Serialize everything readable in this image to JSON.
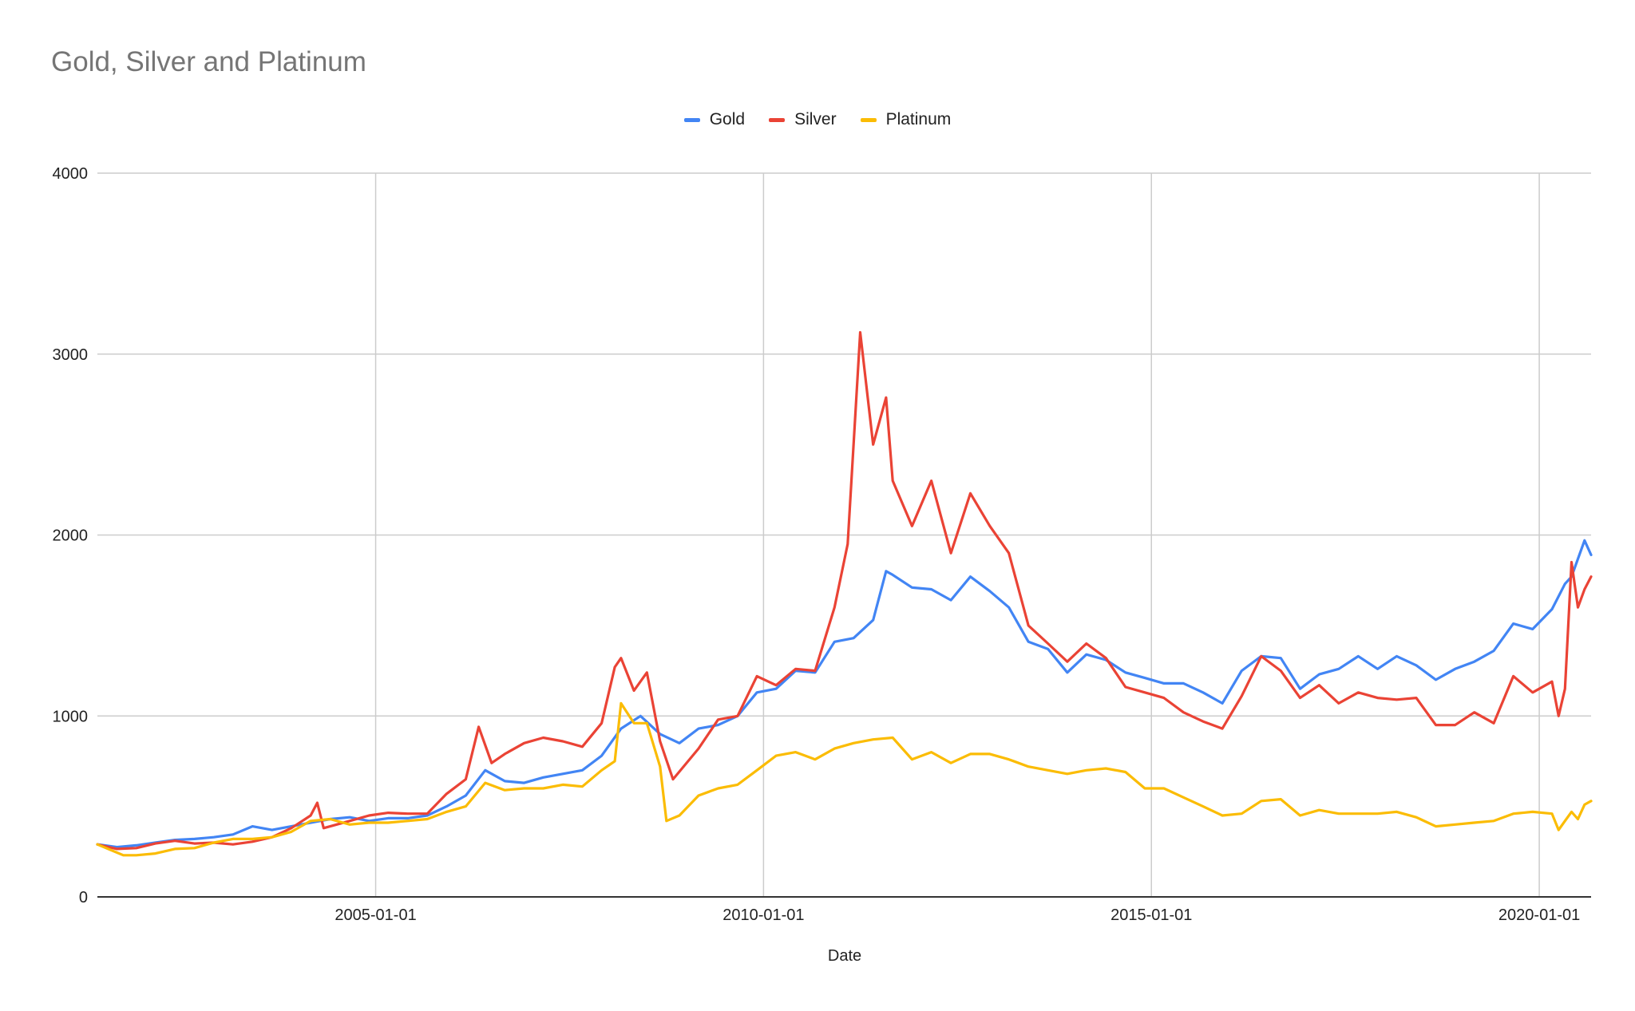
{
  "chart_data": {
    "type": "line",
    "title": "Gold, Silver and Platinum",
    "xlabel": "Date",
    "ylabel": "",
    "ylim": [
      0,
      4000
    ],
    "xlim": [
      "2001-06-01",
      "2020-09-01"
    ],
    "grid": true,
    "legend_position": "top-center",
    "y_ticks": [
      "0",
      "1000",
      "2000",
      "3000",
      "4000"
    ],
    "x_ticks": [
      "2005-01-01",
      "2010-01-01",
      "2015-01-01",
      "2020-01-01"
    ],
    "series": [
      {
        "name": "Gold",
        "color": "#4285F4",
        "points": [
          [
            "2001-06-01",
            290
          ],
          [
            "2001-09-01",
            275
          ],
          [
            "2001-12-01",
            285
          ],
          [
            "2002-03-01",
            300
          ],
          [
            "2002-06-01",
            315
          ],
          [
            "2002-09-01",
            320
          ],
          [
            "2002-12-01",
            330
          ],
          [
            "2003-03-01",
            345
          ],
          [
            "2003-06-01",
            390
          ],
          [
            "2003-09-01",
            370
          ],
          [
            "2003-12-01",
            390
          ],
          [
            "2004-03-01",
            410
          ],
          [
            "2004-06-01",
            430
          ],
          [
            "2004-09-01",
            440
          ],
          [
            "2004-12-01",
            420
          ],
          [
            "2005-03-01",
            435
          ],
          [
            "2005-06-01",
            435
          ],
          [
            "2005-09-01",
            450
          ],
          [
            "2005-12-01",
            500
          ],
          [
            "2006-03-01",
            560
          ],
          [
            "2006-06-01",
            700
          ],
          [
            "2006-09-01",
            640
          ],
          [
            "2006-12-01",
            630
          ],
          [
            "2007-03-01",
            660
          ],
          [
            "2007-06-01",
            680
          ],
          [
            "2007-09-01",
            700
          ],
          [
            "2007-12-01",
            780
          ],
          [
            "2008-03-01",
            930
          ],
          [
            "2008-06-01",
            1000
          ],
          [
            "2008-09-01",
            900
          ],
          [
            "2008-12-01",
            850
          ],
          [
            "2009-03-01",
            930
          ],
          [
            "2009-06-01",
            950
          ],
          [
            "2009-09-01",
            1000
          ],
          [
            "2009-12-01",
            1130
          ],
          [
            "2010-03-01",
            1150
          ],
          [
            "2010-06-01",
            1250
          ],
          [
            "2010-09-01",
            1240
          ],
          [
            "2010-12-01",
            1410
          ],
          [
            "2011-03-01",
            1430
          ],
          [
            "2011-06-01",
            1530
          ],
          [
            "2011-08-01",
            1800
          ],
          [
            "2011-09-01",
            1780
          ],
          [
            "2011-12-01",
            1710
          ],
          [
            "2012-03-01",
            1700
          ],
          [
            "2012-06-01",
            1640
          ],
          [
            "2012-09-01",
            1770
          ],
          [
            "2012-12-01",
            1690
          ],
          [
            "2013-03-01",
            1600
          ],
          [
            "2013-06-01",
            1410
          ],
          [
            "2013-09-01",
            1370
          ],
          [
            "2013-12-01",
            1240
          ],
          [
            "2014-03-01",
            1340
          ],
          [
            "2014-06-01",
            1310
          ],
          [
            "2014-09-01",
            1240
          ],
          [
            "2014-12-01",
            1210
          ],
          [
            "2015-03-01",
            1180
          ],
          [
            "2015-06-01",
            1180
          ],
          [
            "2015-09-01",
            1130
          ],
          [
            "2015-12-01",
            1070
          ],
          [
            "2016-03-01",
            1250
          ],
          [
            "2016-06-01",
            1330
          ],
          [
            "2016-09-01",
            1320
          ],
          [
            "2016-12-01",
            1150
          ],
          [
            "2017-03-01",
            1230
          ],
          [
            "2017-06-01",
            1260
          ],
          [
            "2017-09-01",
            1330
          ],
          [
            "2017-12-01",
            1260
          ],
          [
            "2018-03-01",
            1330
          ],
          [
            "2018-06-01",
            1280
          ],
          [
            "2018-09-01",
            1200
          ],
          [
            "2018-12-01",
            1260
          ],
          [
            "2019-03-01",
            1300
          ],
          [
            "2019-06-01",
            1360
          ],
          [
            "2019-09-01",
            1510
          ],
          [
            "2019-12-01",
            1480
          ],
          [
            "2020-03-01",
            1590
          ],
          [
            "2020-05-01",
            1730
          ],
          [
            "2020-06-01",
            1770
          ],
          [
            "2020-08-01",
            1970
          ],
          [
            "2020-09-01",
            1890
          ]
        ]
      },
      {
        "name": "Silver",
        "color": "#EA4335",
        "points": [
          [
            "2001-06-01",
            290
          ],
          [
            "2001-09-01",
            265
          ],
          [
            "2001-12-01",
            270
          ],
          [
            "2002-03-01",
            295
          ],
          [
            "2002-06-01",
            310
          ],
          [
            "2002-09-01",
            295
          ],
          [
            "2002-12-01",
            300
          ],
          [
            "2003-03-01",
            290
          ],
          [
            "2003-06-01",
            305
          ],
          [
            "2003-09-01",
            330
          ],
          [
            "2003-12-01",
            380
          ],
          [
            "2004-03-01",
            450
          ],
          [
            "2004-04-01",
            520
          ],
          [
            "2004-05-01",
            380
          ],
          [
            "2004-09-01",
            420
          ],
          [
            "2004-12-01",
            450
          ],
          [
            "2005-03-01",
            465
          ],
          [
            "2005-06-01",
            460
          ],
          [
            "2005-09-01",
            460
          ],
          [
            "2005-12-01",
            570
          ],
          [
            "2006-03-01",
            650
          ],
          [
            "2006-05-01",
            940
          ],
          [
            "2006-07-01",
            740
          ],
          [
            "2006-09-01",
            790
          ],
          [
            "2006-12-01",
            850
          ],
          [
            "2007-03-01",
            880
          ],
          [
            "2007-06-01",
            860
          ],
          [
            "2007-09-01",
            830
          ],
          [
            "2007-12-01",
            960
          ],
          [
            "2008-02-01",
            1270
          ],
          [
            "2008-03-01",
            1320
          ],
          [
            "2008-05-01",
            1140
          ],
          [
            "2008-07-01",
            1240
          ],
          [
            "2008-09-01",
            860
          ],
          [
            "2008-11-01",
            650
          ],
          [
            "2009-03-01",
            820
          ],
          [
            "2009-06-01",
            980
          ],
          [
            "2009-09-01",
            1000
          ],
          [
            "2009-12-01",
            1220
          ],
          [
            "2010-03-01",
            1170
          ],
          [
            "2010-06-01",
            1260
          ],
          [
            "2010-09-01",
            1250
          ],
          [
            "2010-12-01",
            1600
          ],
          [
            "2011-02-01",
            1950
          ],
          [
            "2011-04-01",
            3120
          ],
          [
            "2011-06-01",
            2500
          ],
          [
            "2011-08-01",
            2760
          ],
          [
            "2011-09-01",
            2300
          ],
          [
            "2011-12-01",
            2050
          ],
          [
            "2012-03-01",
            2300
          ],
          [
            "2012-06-01",
            1900
          ],
          [
            "2012-09-01",
            2230
          ],
          [
            "2012-12-01",
            2050
          ],
          [
            "2013-03-01",
            1900
          ],
          [
            "2013-06-01",
            1500
          ],
          [
            "2013-09-01",
            1400
          ],
          [
            "2013-12-01",
            1300
          ],
          [
            "2014-03-01",
            1400
          ],
          [
            "2014-06-01",
            1320
          ],
          [
            "2014-09-01",
            1160
          ],
          [
            "2014-12-01",
            1130
          ],
          [
            "2015-03-01",
            1100
          ],
          [
            "2015-06-01",
            1020
          ],
          [
            "2015-09-01",
            970
          ],
          [
            "2015-12-01",
            930
          ],
          [
            "2016-03-01",
            1110
          ],
          [
            "2016-06-01",
            1330
          ],
          [
            "2016-09-01",
            1250
          ],
          [
            "2016-12-01",
            1100
          ],
          [
            "2017-03-01",
            1170
          ],
          [
            "2017-06-01",
            1070
          ],
          [
            "2017-09-01",
            1130
          ],
          [
            "2017-12-01",
            1100
          ],
          [
            "2018-03-01",
            1090
          ],
          [
            "2018-06-01",
            1100
          ],
          [
            "2018-09-01",
            950
          ],
          [
            "2018-12-01",
            950
          ],
          [
            "2019-03-01",
            1020
          ],
          [
            "2019-06-01",
            960
          ],
          [
            "2019-09-01",
            1220
          ],
          [
            "2019-12-01",
            1130
          ],
          [
            "2020-03-01",
            1190
          ],
          [
            "2020-04-01",
            1000
          ],
          [
            "2020-05-01",
            1150
          ],
          [
            "2020-06-01",
            1850
          ],
          [
            "2020-07-01",
            1600
          ],
          [
            "2020-08-01",
            1700
          ],
          [
            "2020-09-01",
            1770
          ]
        ]
      },
      {
        "name": "Platinum",
        "color": "#FBBC04",
        "points": [
          [
            "2001-06-01",
            290
          ],
          [
            "2001-08-01",
            260
          ],
          [
            "2001-10-01",
            230
          ],
          [
            "2001-12-01",
            230
          ],
          [
            "2002-03-01",
            240
          ],
          [
            "2002-06-01",
            265
          ],
          [
            "2002-09-01",
            270
          ],
          [
            "2002-12-01",
            300
          ],
          [
            "2003-03-01",
            320
          ],
          [
            "2003-06-01",
            320
          ],
          [
            "2003-09-01",
            330
          ],
          [
            "2003-12-01",
            360
          ],
          [
            "2004-03-01",
            420
          ],
          [
            "2004-06-01",
            430
          ],
          [
            "2004-09-01",
            400
          ],
          [
            "2004-12-01",
            410
          ],
          [
            "2005-03-01",
            410
          ],
          [
            "2005-06-01",
            420
          ],
          [
            "2005-09-01",
            430
          ],
          [
            "2005-12-01",
            470
          ],
          [
            "2006-03-01",
            500
          ],
          [
            "2006-06-01",
            630
          ],
          [
            "2006-09-01",
            590
          ],
          [
            "2006-12-01",
            600
          ],
          [
            "2007-03-01",
            600
          ],
          [
            "2007-06-01",
            620
          ],
          [
            "2007-09-01",
            610
          ],
          [
            "2007-12-01",
            700
          ],
          [
            "2008-02-01",
            750
          ],
          [
            "2008-03-01",
            1070
          ],
          [
            "2008-05-01",
            960
          ],
          [
            "2008-07-01",
            960
          ],
          [
            "2008-09-01",
            720
          ],
          [
            "2008-10-01",
            420
          ],
          [
            "2008-12-01",
            450
          ],
          [
            "2009-03-01",
            560
          ],
          [
            "2009-06-01",
            600
          ],
          [
            "2009-09-01",
            620
          ],
          [
            "2009-12-01",
            700
          ],
          [
            "2010-03-01",
            780
          ],
          [
            "2010-06-01",
            800
          ],
          [
            "2010-09-01",
            760
          ],
          [
            "2010-12-01",
            820
          ],
          [
            "2011-03-01",
            850
          ],
          [
            "2011-06-01",
            870
          ],
          [
            "2011-09-01",
            880
          ],
          [
            "2011-12-01",
            760
          ],
          [
            "2012-03-01",
            800
          ],
          [
            "2012-06-01",
            740
          ],
          [
            "2012-09-01",
            790
          ],
          [
            "2012-12-01",
            790
          ],
          [
            "2013-03-01",
            760
          ],
          [
            "2013-06-01",
            720
          ],
          [
            "2013-09-01",
            700
          ],
          [
            "2013-12-01",
            680
          ],
          [
            "2014-03-01",
            700
          ],
          [
            "2014-06-01",
            710
          ],
          [
            "2014-09-01",
            690
          ],
          [
            "2014-12-01",
            600
          ],
          [
            "2015-03-01",
            600
          ],
          [
            "2015-06-01",
            550
          ],
          [
            "2015-09-01",
            500
          ],
          [
            "2015-12-01",
            450
          ],
          [
            "2016-03-01",
            460
          ],
          [
            "2016-06-01",
            530
          ],
          [
            "2016-09-01",
            540
          ],
          [
            "2016-12-01",
            450
          ],
          [
            "2017-03-01",
            480
          ],
          [
            "2017-06-01",
            460
          ],
          [
            "2017-09-01",
            460
          ],
          [
            "2017-12-01",
            460
          ],
          [
            "2018-03-01",
            470
          ],
          [
            "2018-06-01",
            440
          ],
          [
            "2018-09-01",
            390
          ],
          [
            "2018-12-01",
            400
          ],
          [
            "2019-03-01",
            410
          ],
          [
            "2019-06-01",
            420
          ],
          [
            "2019-09-01",
            460
          ],
          [
            "2019-12-01",
            470
          ],
          [
            "2020-03-01",
            460
          ],
          [
            "2020-04-01",
            370
          ],
          [
            "2020-05-01",
            420
          ],
          [
            "2020-06-01",
            470
          ],
          [
            "2020-07-01",
            430
          ],
          [
            "2020-08-01",
            510
          ],
          [
            "2020-09-01",
            530
          ]
        ]
      }
    ]
  }
}
